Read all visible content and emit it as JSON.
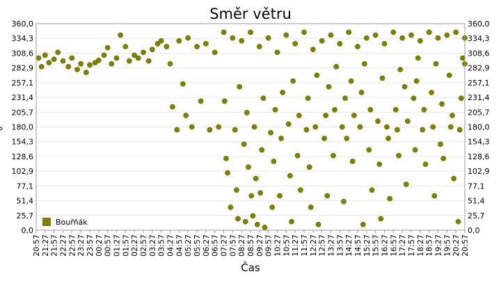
{
  "chart_data": {
    "type": "scatter",
    "title": "Směr větru",
    "xlabel": "Čas",
    "ylabel": "°",
    "ylim": [
      0,
      360
    ],
    "grid": true,
    "legend_position": "bottom-left",
    "series_color": "#808000",
    "y_ticks": [
      "0,0",
      "25,7",
      "51,4",
      "77,1",
      "102,9",
      "128,6",
      "154,3",
      "180,0",
      "205,7",
      "231,4",
      "257,1",
      "282,9",
      "308,6",
      "334,3",
      "360,0"
    ],
    "x_ticks": [
      "20:57",
      "21:27",
      "21:57",
      "22:27",
      "22:57",
      "23:27",
      "23:57",
      "00:27",
      "00:57",
      "01:27",
      "01:57",
      "02:27",
      "02:57",
      "03:27",
      "03:57",
      "04:27",
      "04:57",
      "05:27",
      "05:57",
      "06:27",
      "06:57",
      "07:27",
      "07:57",
      "08:27",
      "08:57",
      "09:27",
      "09:57",
      "10:27",
      "10:57",
      "11:27",
      "11:57",
      "12:27",
      "12:57",
      "13:27",
      "13:57",
      "14:27",
      "14:57",
      "15:27",
      "15:57",
      "16:27",
      "16:57",
      "17:27",
      "17:57",
      "18:27",
      "18:57",
      "19:27",
      "19:57",
      "20:27",
      "20:57"
    ],
    "series": [
      {
        "name": "Bouřňák",
        "points": [
          {
            "x": "20:57",
            "y": 290
          },
          {
            "x": "21:05",
            "y": 300
          },
          {
            "x": "21:15",
            "y": 285
          },
          {
            "x": "21:27",
            "y": 305
          },
          {
            "x": "21:40",
            "y": 292
          },
          {
            "x": "21:57",
            "y": 298
          },
          {
            "x": "22:10",
            "y": 310
          },
          {
            "x": "22:27",
            "y": 295
          },
          {
            "x": "22:45",
            "y": 285
          },
          {
            "x": "22:57",
            "y": 300
          },
          {
            "x": "23:15",
            "y": 280
          },
          {
            "x": "23:27",
            "y": 290
          },
          {
            "x": "23:45",
            "y": 275
          },
          {
            "x": "23:57",
            "y": 288
          },
          {
            "x": "00:15",
            "y": 292
          },
          {
            "x": "00:27",
            "y": 296
          },
          {
            "x": "00:45",
            "y": 305
          },
          {
            "x": "00:57",
            "y": 318
          },
          {
            "x": "01:10",
            "y": 290
          },
          {
            "x": "01:27",
            "y": 300
          },
          {
            "x": "01:40",
            "y": 340
          },
          {
            "x": "01:57",
            "y": 320
          },
          {
            "x": "02:10",
            "y": 295
          },
          {
            "x": "02:27",
            "y": 305
          },
          {
            "x": "02:40",
            "y": 300
          },
          {
            "x": "02:57",
            "y": 310
          },
          {
            "x": "03:15",
            "y": 295
          },
          {
            "x": "03:27",
            "y": 315
          },
          {
            "x": "03:45",
            "y": 325
          },
          {
            "x": "03:57",
            "y": 330
          },
          {
            "x": "04:15",
            "y": 320
          },
          {
            "x": "04:27",
            "y": 290
          },
          {
            "x": "04:35",
            "y": 215
          },
          {
            "x": "04:50",
            "y": 175
          },
          {
            "x": "04:57",
            "y": 330
          },
          {
            "x": "05:10",
            "y": 255
          },
          {
            "x": "05:20",
            "y": 200
          },
          {
            "x": "05:27",
            "y": 335
          },
          {
            "x": "05:40",
            "y": 180
          },
          {
            "x": "05:57",
            "y": 320
          },
          {
            "x": "06:10",
            "y": 225
          },
          {
            "x": "06:27",
            "y": 325
          },
          {
            "x": "06:40",
            "y": 175
          },
          {
            "x": "06:57",
            "y": 310
          },
          {
            "x": "07:10",
            "y": 180
          },
          {
            "x": "07:27",
            "y": 345
          },
          {
            "x": "07:30",
            "y": 225
          },
          {
            "x": "07:35",
            "y": 125
          },
          {
            "x": "07:40",
            "y": 100
          },
          {
            "x": "07:50",
            "y": 40
          },
          {
            "x": "07:57",
            "y": 335
          },
          {
            "x": "08:05",
            "y": 175
          },
          {
            "x": "08:10",
            "y": 70
          },
          {
            "x": "08:15",
            "y": 20
          },
          {
            "x": "08:20",
            "y": 250
          },
          {
            "x": "08:27",
            "y": 330
          },
          {
            "x": "08:35",
            "y": 150
          },
          {
            "x": "08:40",
            "y": 15
          },
          {
            "x": "08:45",
            "y": 205
          },
          {
            "x": "08:50",
            "y": 110
          },
          {
            "x": "08:57",
            "y": 345
          },
          {
            "x": "09:00",
            "y": 60
          },
          {
            "x": "09:05",
            "y": 25
          },
          {
            "x": "09:10",
            "y": 180
          },
          {
            "x": "09:15",
            "y": 90
          },
          {
            "x": "09:20",
            "y": 10
          },
          {
            "x": "09:27",
            "y": 320
          },
          {
            "x": "09:30",
            "y": 65
          },
          {
            "x": "09:35",
            "y": 140
          },
          {
            "x": "09:40",
            "y": 230
          },
          {
            "x": "09:45",
            "y": 5
          },
          {
            "x": "09:57",
            "y": 335
          },
          {
            "x": "10:05",
            "y": 170
          },
          {
            "x": "10:10",
            "y": 40
          },
          {
            "x": "10:15",
            "y": 120
          },
          {
            "x": "10:20",
            "y": 210
          },
          {
            "x": "10:27",
            "y": 310
          },
          {
            "x": "10:35",
            "y": 60
          },
          {
            "x": "10:40",
            "y": 160
          },
          {
            "x": "10:45",
            "y": 240
          },
          {
            "x": "10:57",
            "y": 340
          },
          {
            "x": "11:05",
            "y": 185
          },
          {
            "x": "11:10",
            "y": 95
          },
          {
            "x": "11:15",
            "y": 15
          },
          {
            "x": "11:20",
            "y": 260
          },
          {
            "x": "11:27",
            "y": 325
          },
          {
            "x": "11:35",
            "y": 130
          },
          {
            "x": "11:40",
            "y": 200
          },
          {
            "x": "11:45",
            "y": 70
          },
          {
            "x": "11:57",
            "y": 345
          },
          {
            "x": "12:05",
            "y": 175
          },
          {
            "x": "12:10",
            "y": 230
          },
          {
            "x": "12:15",
            "y": 110
          },
          {
            "x": "12:20",
            "y": 40
          },
          {
            "x": "12:27",
            "y": 315
          },
          {
            "x": "12:35",
            "y": 180
          },
          {
            "x": "12:40",
            "y": 270
          },
          {
            "x": "12:45",
            "y": 10
          },
          {
            "x": "12:57",
            "y": 330
          },
          {
            "x": "13:05",
            "y": 160
          },
          {
            "x": "13:10",
            "y": 200
          },
          {
            "x": "13:15",
            "y": 60
          },
          {
            "x": "13:20",
            "y": 250
          },
          {
            "x": "13:27",
            "y": 340
          },
          {
            "x": "13:35",
            "y": 130
          },
          {
            "x": "13:40",
            "y": 210
          },
          {
            "x": "13:45",
            "y": 285
          },
          {
            "x": "13:57",
            "y": 325
          },
          {
            "x": "14:05",
            "y": 180
          },
          {
            "x": "14:10",
            "y": 50
          },
          {
            "x": "14:15",
            "y": 230
          },
          {
            "x": "14:20",
            "y": 160
          },
          {
            "x": "14:27",
            "y": 345
          },
          {
            "x": "14:35",
            "y": 260
          },
          {
            "x": "14:40",
            "y": 120
          },
          {
            "x": "14:45",
            "y": 200
          },
          {
            "x": "14:57",
            "y": 320
          },
          {
            "x": "15:05",
            "y": 180
          },
          {
            "x": "15:10",
            "y": 240
          },
          {
            "x": "15:15",
            "y": 10
          },
          {
            "x": "15:20",
            "y": 290
          },
          {
            "x": "15:27",
            "y": 335
          },
          {
            "x": "15:35",
            "y": 140
          },
          {
            "x": "15:40",
            "y": 210
          },
          {
            "x": "15:45",
            "y": 70
          },
          {
            "x": "15:57",
            "y": 340
          },
          {
            "x": "16:05",
            "y": 190
          },
          {
            "x": "16:10",
            "y": 115
          },
          {
            "x": "16:15",
            "y": 20
          },
          {
            "x": "16:20",
            "y": 265
          },
          {
            "x": "16:27",
            "y": 325
          },
          {
            "x": "16:35",
            "y": 180
          },
          {
            "x": "16:40",
            "y": 160
          },
          {
            "x": "16:45",
            "y": 55
          },
          {
            "x": "16:57",
            "y": 345
          },
          {
            "x": "17:05",
            "y": 210
          },
          {
            "x": "17:10",
            "y": 175
          },
          {
            "x": "17:15",
            "y": 130
          },
          {
            "x": "17:20",
            "y": 280
          },
          {
            "x": "17:27",
            "y": 335
          },
          {
            "x": "17:35",
            "y": 250
          },
          {
            "x": "17:40",
            "y": 80
          },
          {
            "x": "17:45",
            "y": 190
          },
          {
            "x": "17:57",
            "y": 340
          },
          {
            "x": "18:05",
            "y": 230
          },
          {
            "x": "18:10",
            "y": 140
          },
          {
            "x": "18:15",
            "y": 260
          },
          {
            "x": "18:20",
            "y": 300
          },
          {
            "x": "18:27",
            "y": 330
          },
          {
            "x": "18:35",
            "y": 175
          },
          {
            "x": "18:40",
            "y": 210
          },
          {
            "x": "18:45",
            "y": 115
          },
          {
            "x": "18:57",
            "y": 345
          },
          {
            "x": "19:05",
            "y": 240
          },
          {
            "x": "19:10",
            "y": 180
          },
          {
            "x": "19:15",
            "y": 60
          },
          {
            "x": "19:20",
            "y": 290
          },
          {
            "x": "19:27",
            "y": 335
          },
          {
            "x": "19:35",
            "y": 150
          },
          {
            "x": "19:40",
            "y": 220
          },
          {
            "x": "19:45",
            "y": 125
          },
          {
            "x": "19:57",
            "y": 340
          },
          {
            "x": "20:05",
            "y": 270
          },
          {
            "x": "20:10",
            "y": 180
          },
          {
            "x": "20:15",
            "y": 200
          },
          {
            "x": "20:20",
            "y": 90
          },
          {
            "x": "20:27",
            "y": 345
          },
          {
            "x": "20:35",
            "y": 15
          },
          {
            "x": "20:40",
            "y": 175
          },
          {
            "x": "20:45",
            "y": 230
          },
          {
            "x": "20:50",
            "y": 300
          },
          {
            "x": "20:57",
            "y": 335
          }
        ]
      }
    ]
  }
}
